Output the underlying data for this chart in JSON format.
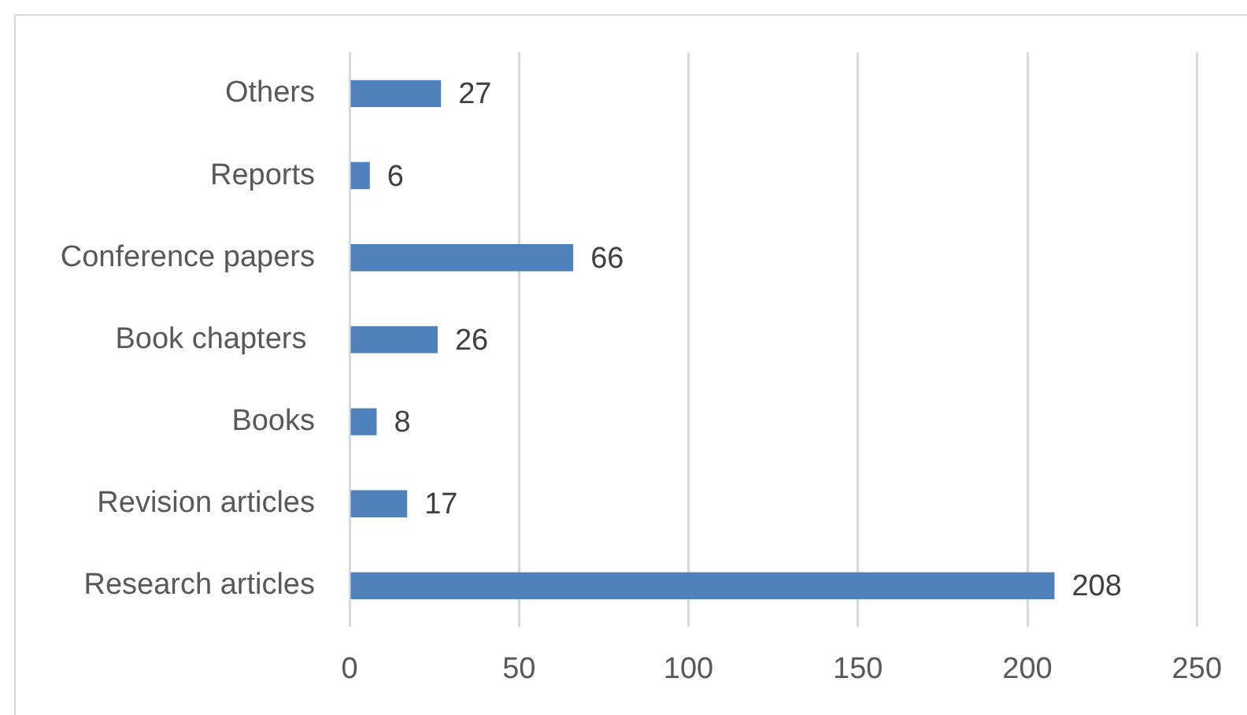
{
  "chart_data": {
    "type": "bar",
    "orientation": "horizontal",
    "categories": [
      "Others",
      "Reports",
      "Conference papers",
      "Book chapters ",
      "Books",
      "Revision articles",
      "Research articles"
    ],
    "values": [
      27,
      6,
      66,
      26,
      8,
      17,
      208
    ],
    "color": "#4f81bd",
    "xlim": [
      0,
      250
    ],
    "xticks": [
      0,
      50,
      100,
      150,
      200,
      250
    ],
    "grid": "x",
    "data_labels": true
  }
}
